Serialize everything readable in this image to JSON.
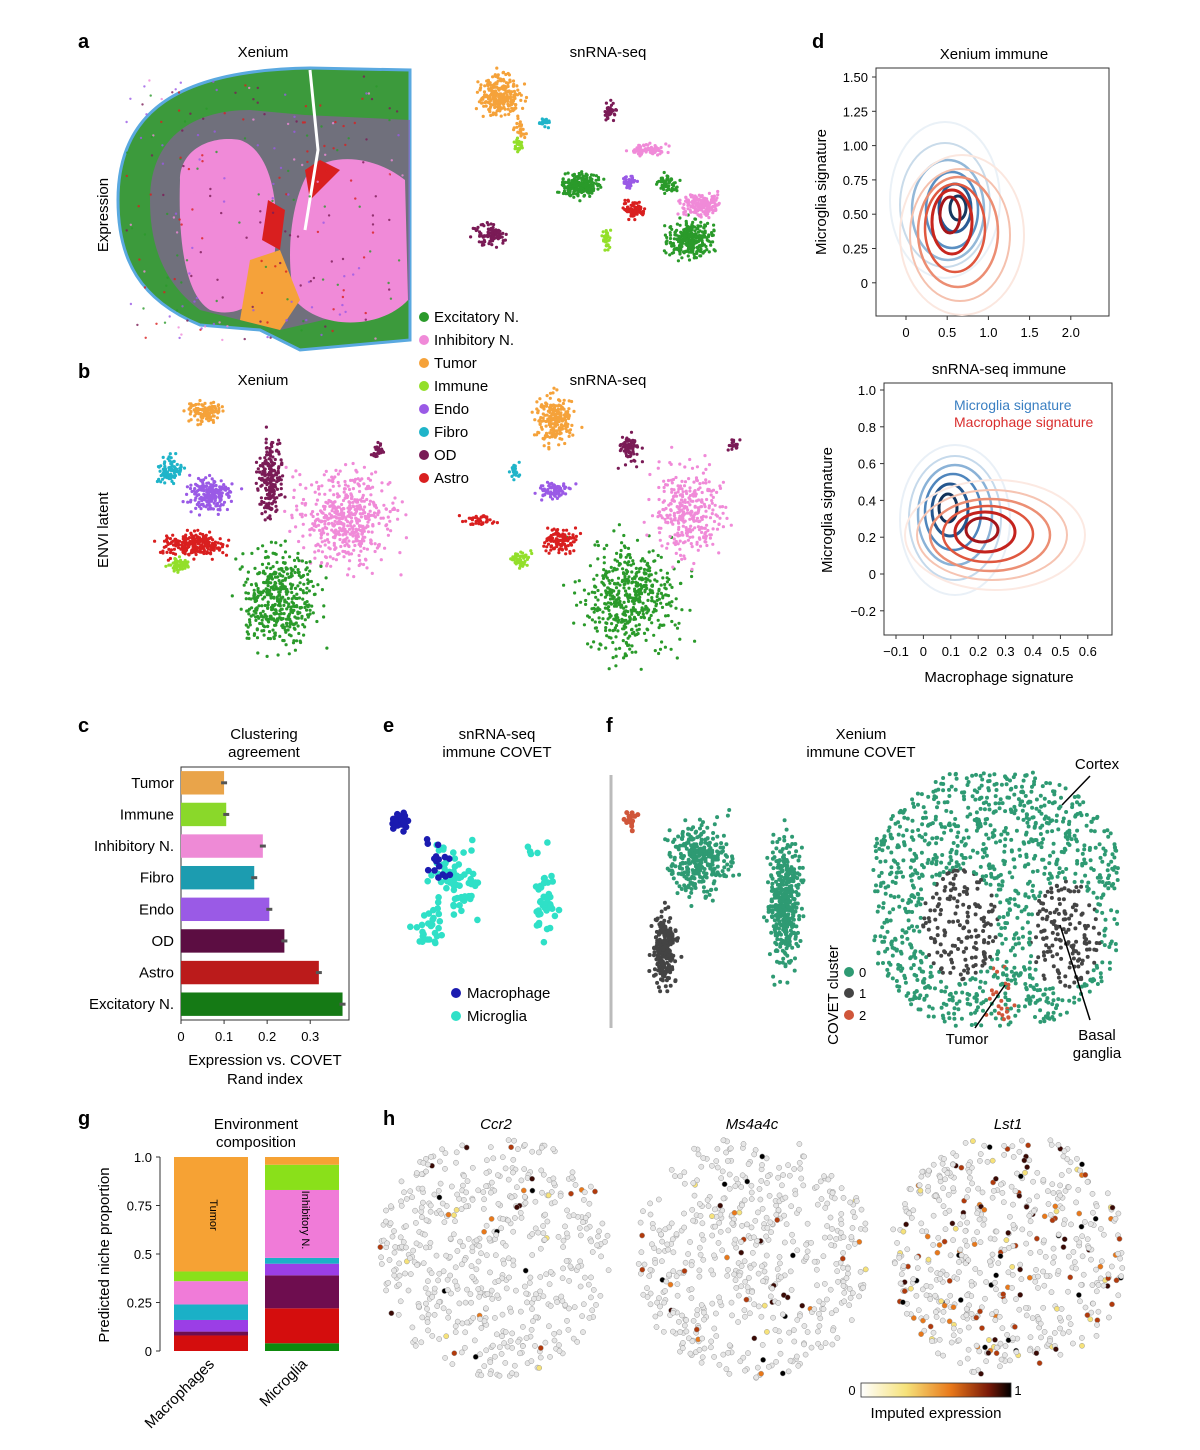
{
  "colors": {
    "excitatory": "#2a9a2a",
    "inhibitory": "#f08ad8",
    "tumor": "#f5a23a",
    "immune": "#93df2a",
    "endo": "#9a5ae6",
    "fibro": "#1fb4c9",
    "od": "#7a1b56",
    "astro": "#d91f1f",
    "macrophage": "#1b1bb0",
    "microglia": "#2fe0c7",
    "covet0": "#2e9a73",
    "covet1": "#444",
    "covet2": "#d0563a"
  },
  "panel_a": {
    "letter": "a",
    "title_left": "Xenium",
    "title_right": "snRNA-seq",
    "ylabel": "Expression"
  },
  "panel_b": {
    "letter": "b",
    "title_left": "Xenium",
    "title_right": "snRNA-seq",
    "ylabel": "ENVI latent"
  },
  "legend_celltypes": [
    "Excitatory N.",
    "Inhibitory N.",
    "Tumor",
    "Immune",
    "Endo",
    "Fibro",
    "OD",
    "Astro"
  ],
  "panel_c": {
    "letter": "c",
    "chart_data": {
      "type": "bar",
      "title": "Clustering agreement",
      "title_line1": "Clustering",
      "title_line2": "agreement",
      "categories": [
        "Tumor",
        "Immune",
        "Inhibitory N.",
        "Fibro",
        "Endo",
        "OD",
        "Astro",
        "Excitatory N."
      ],
      "values": [
        0.1,
        0.105,
        0.19,
        0.17,
        0.205,
        0.24,
        0.32,
        0.375
      ],
      "colors": [
        "#e9a44a",
        "#8ad82a",
        "#ee8ad6",
        "#1c9cb0",
        "#9a5ae6",
        "#5c0d42",
        "#bb1b1b",
        "#157a15"
      ],
      "xticks": [
        "0",
        "0.1",
        "0.2",
        "0.3"
      ],
      "xlim": [
        0,
        0.39
      ],
      "xlabel_line1": "Expression vs. COVET",
      "xlabel_line2": "Rand index"
    }
  },
  "panel_d": {
    "letter": "d",
    "top": {
      "title": "Xenium immune",
      "ylabel": "Microglia signature",
      "xticks": [
        "0",
        "0.5",
        "1.0",
        "1.5",
        "2.0"
      ],
      "yticks": [
        "1.50",
        "1.25",
        "1.00",
        "0.75",
        "0.50",
        "0.25",
        "0"
      ]
    },
    "bottom": {
      "title": "snRNA-seq immune",
      "ylabel": "Microglia signature",
      "xlabel": "Macrophage signature",
      "xticks": [
        "−0.1",
        "0",
        "0.1",
        "0.2",
        "0.3",
        "0.4",
        "0.5",
        "0.6"
      ],
      "yticks": [
        "1.0",
        "0.8",
        "0.6",
        "0.4",
        "0.2",
        "0",
        "−0.2"
      ],
      "legend_microglia": "Microglia signature",
      "legend_macrophage": "Macrophage signature"
    }
  },
  "panel_e": {
    "letter": "e",
    "title_line1": "snRNA-seq",
    "title_line2": "immune COVET",
    "legend": [
      "Macrophage",
      "Microglia"
    ]
  },
  "panel_f": {
    "letter": "f",
    "title_line1": "Xenium",
    "title_line2": "immune COVET",
    "legend_title": "COVET cluster",
    "legend": [
      "0",
      "1",
      "2"
    ],
    "annot_cortex": "Cortex",
    "annot_tumor": "Tumor",
    "annot_basal1": "Basal",
    "annot_basal2": "ganglia"
  },
  "panel_g": {
    "letter": "g",
    "chart_data": {
      "type": "bar",
      "stacked": true,
      "title_line1": "Environment",
      "title_line2": "composition",
      "ylabel": "Predicted niche proportion",
      "yticks": [
        "0",
        "0.25",
        "0.5",
        "0.75",
        "1.0"
      ],
      "ylim": [
        0,
        1
      ],
      "categories": [
        "Macrophages",
        "Microglia"
      ],
      "segment_colors": [
        "#0e8a0e",
        "#d40d0d",
        "#6e0d4f",
        "#9b3ee6",
        "#1ab0c7",
        "#f07bd8",
        "#8ae01a",
        "#f6a234"
      ],
      "series": [
        {
          "name": "Excitatory N.",
          "values": [
            0.0,
            0.04
          ]
        },
        {
          "name": "Astro",
          "values": [
            0.08,
            0.18
          ]
        },
        {
          "name": "OD",
          "values": [
            0.02,
            0.17
          ]
        },
        {
          "name": "Endo",
          "values": [
            0.06,
            0.06
          ]
        },
        {
          "name": "Fibro",
          "values": [
            0.08,
            0.03
          ]
        },
        {
          "name": "Inhibitory N.",
          "values": [
            0.12,
            0.35
          ]
        },
        {
          "name": "Immune",
          "values": [
            0.05,
            0.13
          ]
        },
        {
          "name": "Tumor",
          "values": [
            0.59,
            0.04
          ]
        }
      ],
      "inner_label_macrophages": "Tumor",
      "inner_label_microglia": "Inhibitory N."
    }
  },
  "panel_h": {
    "letter": "h",
    "genes": [
      "Ccr2",
      "Ms4a4c",
      "Lst1"
    ],
    "colorbar_min": "0",
    "colorbar_max": "1",
    "colorbar_label": "Imputed expression"
  }
}
